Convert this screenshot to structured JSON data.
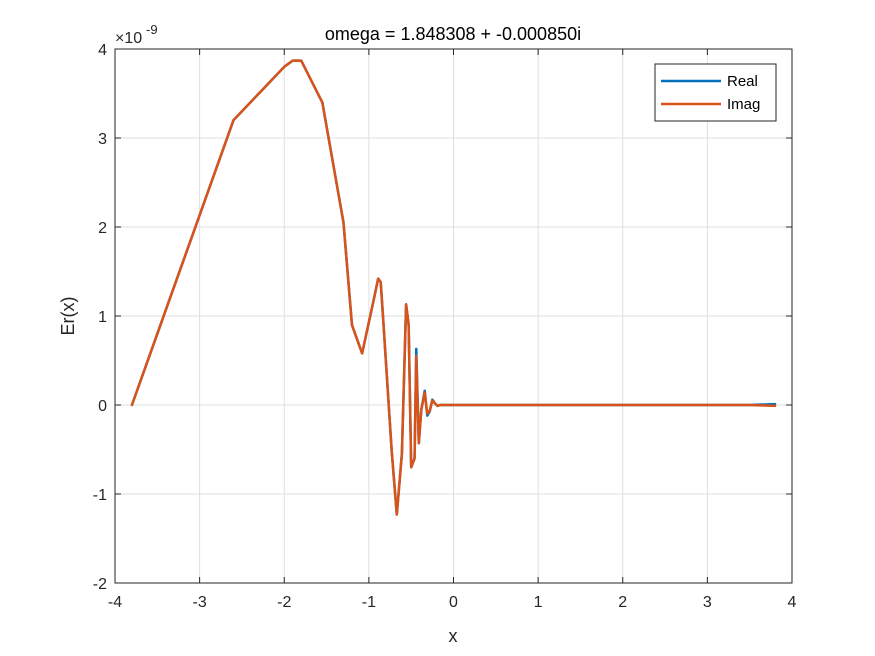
{
  "chart_data": {
    "type": "line",
    "title": "omega = 1.848308 + -0.000850i",
    "xlabel": "x",
    "ylabel": "Er(x)",
    "xlim": [
      -4,
      4
    ],
    "ylim": [
      -2,
      4
    ],
    "y_exponent": "-9",
    "y_multiplier_base": "×10",
    "xticks": [
      -4,
      -3,
      -2,
      -1,
      0,
      1,
      2,
      3,
      4
    ],
    "yticks": [
      -2,
      -1,
      0,
      1,
      2,
      3,
      4
    ],
    "xtick_labels": [
      "-4",
      "-3",
      "-2",
      "-1",
      "0",
      "1",
      "2",
      "3",
      "4"
    ],
    "ytick_labels": [
      "-2",
      "-1",
      "0",
      "1",
      "2",
      "3",
      "4"
    ],
    "grid": true,
    "legend_position": "top-right",
    "series": [
      {
        "name": "Real",
        "color": "#0072BD",
        "x": [
          -3.8,
          -3.5,
          -3.2,
          -2.9,
          -2.6,
          -2.2,
          -2.0,
          -1.9,
          -1.8,
          -1.55,
          -1.3,
          -1.2,
          -1.08,
          -0.95,
          -0.89,
          -0.86,
          -0.83,
          -0.73,
          -0.67,
          -0.61,
          -0.56,
          -0.53,
          -0.5,
          -0.46,
          -0.44,
          -0.41,
          -0.38,
          -0.34,
          -0.31,
          -0.28,
          -0.25,
          -0.22,
          -0.19,
          -0.16,
          -0.12,
          -0.08,
          -0.04,
          0.0,
          0.5,
          1.0,
          1.5,
          2.0,
          2.5,
          3.0,
          3.5,
          3.8
        ],
        "y": [
          0.0,
          0.8,
          1.6,
          2.4,
          3.2,
          3.6,
          3.8,
          3.87,
          3.87,
          3.4,
          2.05,
          0.9,
          0.58,
          1.15,
          1.42,
          1.38,
          0.95,
          -0.52,
          -1.23,
          -0.55,
          1.13,
          0.9,
          -0.7,
          -0.6,
          0.63,
          -0.43,
          -0.05,
          0.16,
          -0.12,
          -0.07,
          0.06,
          0.02,
          -0.01,
          0.0,
          0.0,
          0.0,
          0.0,
          0.0,
          0.0,
          0.0,
          0.0,
          0.0,
          0.0,
          0.0,
          0.0,
          0.01
        ]
      },
      {
        "name": "Imag",
        "color": "#D95319",
        "x": [
          -3.8,
          -3.5,
          -3.2,
          -2.9,
          -2.6,
          -2.2,
          -2.0,
          -1.9,
          -1.8,
          -1.55,
          -1.3,
          -1.2,
          -1.08,
          -0.95,
          -0.89,
          -0.86,
          -0.83,
          -0.73,
          -0.67,
          -0.61,
          -0.56,
          -0.53,
          -0.5,
          -0.46,
          -0.44,
          -0.41,
          -0.38,
          -0.34,
          -0.31,
          -0.28,
          -0.25,
          -0.22,
          -0.19,
          -0.16,
          -0.12,
          -0.08,
          -0.04,
          0.0,
          0.5,
          1.0,
          1.5,
          2.0,
          2.5,
          3.0,
          3.5,
          3.8
        ],
        "y": [
          0.0,
          0.8,
          1.6,
          2.4,
          3.2,
          3.6,
          3.8,
          3.87,
          3.87,
          3.4,
          2.05,
          0.9,
          0.58,
          1.15,
          1.42,
          1.38,
          0.95,
          -0.52,
          -1.23,
          -0.55,
          1.13,
          0.9,
          -0.7,
          -0.6,
          0.55,
          -0.43,
          -0.05,
          0.14,
          -0.1,
          -0.06,
          0.05,
          0.02,
          -0.01,
          0.0,
          0.0,
          0.0,
          0.0,
          0.0,
          0.0,
          0.0,
          0.0,
          0.0,
          0.0,
          0.0,
          0.0,
          -0.01
        ]
      }
    ]
  }
}
